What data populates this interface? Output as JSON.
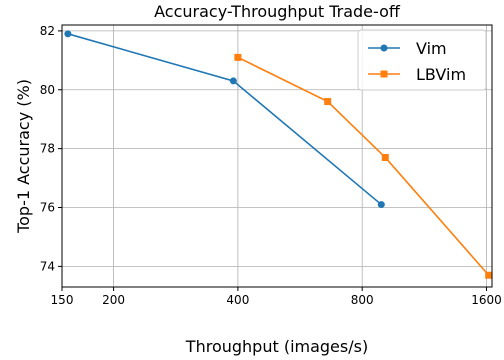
{
  "chart_data": {
    "type": "line",
    "title": "Accuracy-Throughput Trade-off",
    "xlabel": "Throughput (images/s)",
    "ylabel": "Top-1 Accuracy (%)",
    "xscale": "log",
    "xlim": [
      150,
      1650
    ],
    "ylim": [
      73.3,
      82.2
    ],
    "xticks": [
      150,
      200,
      400,
      800,
      1600
    ],
    "xtick_labels": [
      "150",
      "200",
      "400",
      "800",
      "1600"
    ],
    "yticks": [
      74,
      76,
      78,
      80,
      82
    ],
    "ytick_labels": [
      "74",
      "76",
      "78",
      "80",
      "82"
    ],
    "grid": true,
    "legend_position": "top-right",
    "series": [
      {
        "name": "Vim",
        "color": "#1f77b4",
        "marker": "circle",
        "points": [
          {
            "x": 155,
            "y": 81.9
          },
          {
            "x": 390,
            "y": 80.3
          },
          {
            "x": 890,
            "y": 76.1
          }
        ]
      },
      {
        "name": "LBVim",
        "color": "#ff7f0e",
        "marker": "square",
        "points": [
          {
            "x": 400,
            "y": 81.1
          },
          {
            "x": 660,
            "y": 79.6
          },
          {
            "x": 910,
            "y": 77.7
          },
          {
            "x": 1620,
            "y": 73.7
          }
        ]
      }
    ]
  }
}
